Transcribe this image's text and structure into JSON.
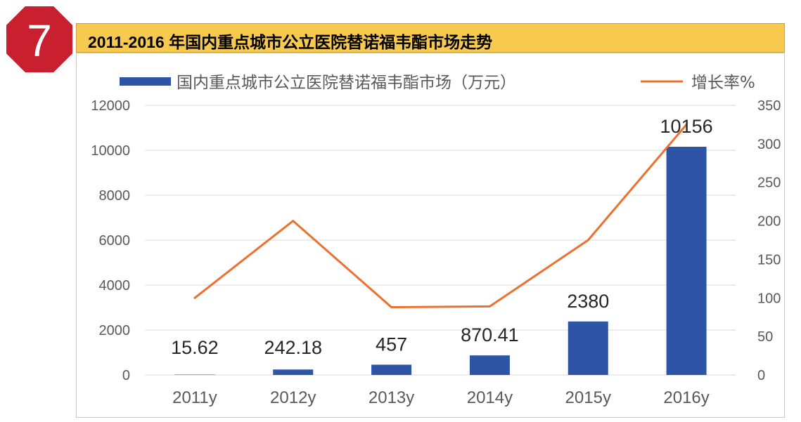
{
  "badge": {
    "number": "7",
    "color": "#c8202f"
  },
  "header": {
    "title": "2011-2016 年国内重点城市公立医院替诺福韦酯市场走势",
    "background": "#f7c94f"
  },
  "chart_data": {
    "type": "bar",
    "categories": [
      "2011y",
      "2012y",
      "2013y",
      "2014y",
      "2015y",
      "2016y"
    ],
    "series": [
      {
        "name": "国内重点城市公立医院替诺福韦酯市场（万元）",
        "type": "bar",
        "axis": "left",
        "color": "#2e55a5",
        "values": [
          15.62,
          242.18,
          457,
          870.41,
          2380,
          10156
        ],
        "labels": [
          "15.62",
          "242.18",
          "457",
          "870.41",
          "2380",
          "10156"
        ]
      },
      {
        "name": "增长率%",
        "type": "line",
        "axis": "right",
        "color": "#ec7131",
        "values": [
          100,
          200,
          88,
          89,
          175,
          325
        ]
      }
    ],
    "y_left": {
      "ylim": [
        0,
        12000
      ],
      "ticks": [
        "0",
        "2000",
        "4000",
        "6000",
        "8000",
        "10000",
        "12000"
      ]
    },
    "y_right": {
      "ylim": [
        0,
        350
      ],
      "ticks": [
        "0",
        "50",
        "100",
        "150",
        "200",
        "250",
        "300",
        "350"
      ]
    },
    "grid": true,
    "legend_position": "top"
  }
}
